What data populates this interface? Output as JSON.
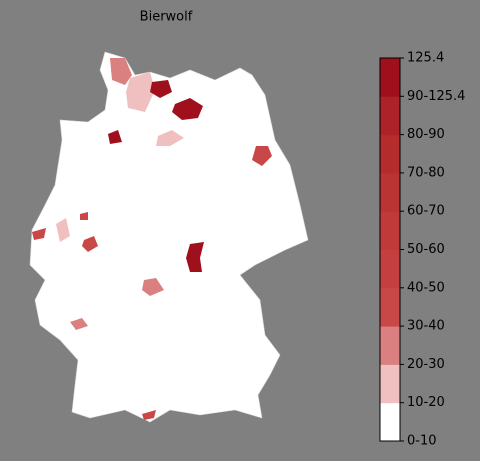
{
  "map": {
    "title": "Bierwolf",
    "legend": {
      "labels": [
        "0-10",
        "10-20",
        "20-30",
        "30-40",
        "40-50",
        "50-60",
        "60-70",
        "70-80",
        "80-90",
        "90-125.4",
        "125.4"
      ],
      "colors": [
        "#ffffff",
        "#f0c0c0",
        "#db8080",
        "#c84848",
        "#c44040",
        "#c03a3a",
        "#bb3434",
        "#b52c2c",
        "#ad2228",
        "#a0101c"
      ]
    }
  }
}
